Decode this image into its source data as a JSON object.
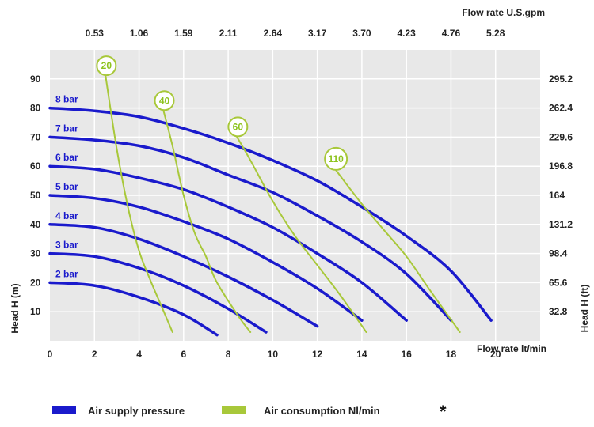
{
  "chart_data": {
    "type": "line",
    "top_axis": {
      "label": "Flow rate U.S.gpm",
      "ticks": [
        "0.53",
        "1.06",
        "1.59",
        "2.11",
        "2.64",
        "3.17",
        "3.70",
        "4.23",
        "4.76",
        "5.28"
      ],
      "tick_x": [
        2,
        4,
        6,
        8,
        10,
        12,
        14,
        16,
        18,
        20
      ]
    },
    "bottom_axis": {
      "label": "Flow rate  lt/min",
      "ticks": [
        "0",
        "2",
        "4",
        "6",
        "8",
        "10",
        "12",
        "14",
        "16",
        "18",
        "20"
      ],
      "xlim": [
        0,
        22
      ]
    },
    "left_axis": {
      "label": "Head H (m)",
      "ticks": [
        "10",
        "20",
        "30",
        "40",
        "50",
        "60",
        "70",
        "80",
        "90"
      ],
      "ylim": [
        0,
        100
      ]
    },
    "right_axis": {
      "label": "Head H (ft)",
      "ticks": [
        "32.8",
        "65.6",
        "98.4",
        "131.2",
        "164",
        "196.8",
        "229.6",
        "262.4",
        "295.2"
      ]
    },
    "grid": true,
    "pressure_series": [
      {
        "name": "2 bar",
        "points": [
          [
            0,
            20
          ],
          [
            2,
            19
          ],
          [
            4,
            15
          ],
          [
            6,
            9
          ],
          [
            7.5,
            2
          ]
        ]
      },
      {
        "name": "3 bar",
        "points": [
          [
            0,
            30
          ],
          [
            2,
            29
          ],
          [
            4,
            25
          ],
          [
            6,
            19
          ],
          [
            8,
            11
          ],
          [
            9.7,
            3
          ]
        ]
      },
      {
        "name": "4 bar",
        "points": [
          [
            0,
            40
          ],
          [
            2,
            39
          ],
          [
            4,
            35
          ],
          [
            6,
            29
          ],
          [
            8,
            22
          ],
          [
            10,
            14
          ],
          [
            12,
            5
          ]
        ]
      },
      {
        "name": "5 bar",
        "points": [
          [
            0,
            50
          ],
          [
            2,
            49
          ],
          [
            4,
            46
          ],
          [
            6,
            41
          ],
          [
            8,
            35
          ],
          [
            10,
            27
          ],
          [
            12,
            18
          ],
          [
            14,
            7
          ]
        ]
      },
      {
        "name": "6 bar",
        "points": [
          [
            0,
            60
          ],
          [
            2,
            59
          ],
          [
            4,
            56
          ],
          [
            6,
            52
          ],
          [
            8,
            46
          ],
          [
            10,
            39
          ],
          [
            12,
            30
          ],
          [
            14,
            20
          ],
          [
            16,
            7
          ]
        ]
      },
      {
        "name": "7 bar",
        "points": [
          [
            0,
            70
          ],
          [
            2,
            69
          ],
          [
            4,
            67
          ],
          [
            6,
            63
          ],
          [
            8,
            57
          ],
          [
            10,
            51
          ],
          [
            12,
            43
          ],
          [
            14,
            34
          ],
          [
            16,
            23
          ],
          [
            18,
            7
          ]
        ]
      },
      {
        "name": "8 bar",
        "points": [
          [
            0,
            80
          ],
          [
            2,
            79
          ],
          [
            4,
            77
          ],
          [
            6,
            73
          ],
          [
            8,
            68
          ],
          [
            10,
            62
          ],
          [
            12,
            55
          ],
          [
            14,
            46
          ],
          [
            16,
            36
          ],
          [
            18,
            24
          ],
          [
            19.8,
            7
          ]
        ]
      }
    ],
    "air_series": [
      {
        "name": "20",
        "points": [
          [
            2.5,
            91
          ],
          [
            3,
            66
          ],
          [
            3.5,
            46
          ],
          [
            4,
            31
          ],
          [
            4.5,
            21
          ],
          [
            5,
            12
          ],
          [
            5.5,
            3
          ]
        ]
      },
      {
        "name": "40",
        "points": [
          [
            5.1,
            79
          ],
          [
            5.5,
            67
          ],
          [
            6,
            50
          ],
          [
            6.5,
            37
          ],
          [
            7,
            29
          ],
          [
            7.5,
            20
          ],
          [
            8.5,
            8
          ],
          [
            9,
            3
          ]
        ]
      },
      {
        "name": "60",
        "points": [
          [
            8.4,
            70
          ],
          [
            9,
            62
          ],
          [
            10,
            48
          ],
          [
            11,
            36
          ],
          [
            12,
            26
          ],
          [
            13,
            16
          ],
          [
            14.2,
            3
          ]
        ]
      },
      {
        "name": "110",
        "points": [
          [
            12.8,
            59
          ],
          [
            14,
            47
          ],
          [
            15,
            38
          ],
          [
            16,
            29
          ],
          [
            17,
            18
          ],
          [
            18.4,
            3
          ]
        ]
      }
    ],
    "legend": [
      {
        "label": "Air supply pressure",
        "color": "#1a1acc"
      },
      {
        "label": "Air consumption  Nl/min",
        "color": "#a8c83a"
      }
    ],
    "footnote": "*"
  },
  "colors": {
    "pressure": "#1a1acc",
    "air": "#a8c83a",
    "plot_bg": "#e8e8e8",
    "grid": "#ffffff"
  }
}
